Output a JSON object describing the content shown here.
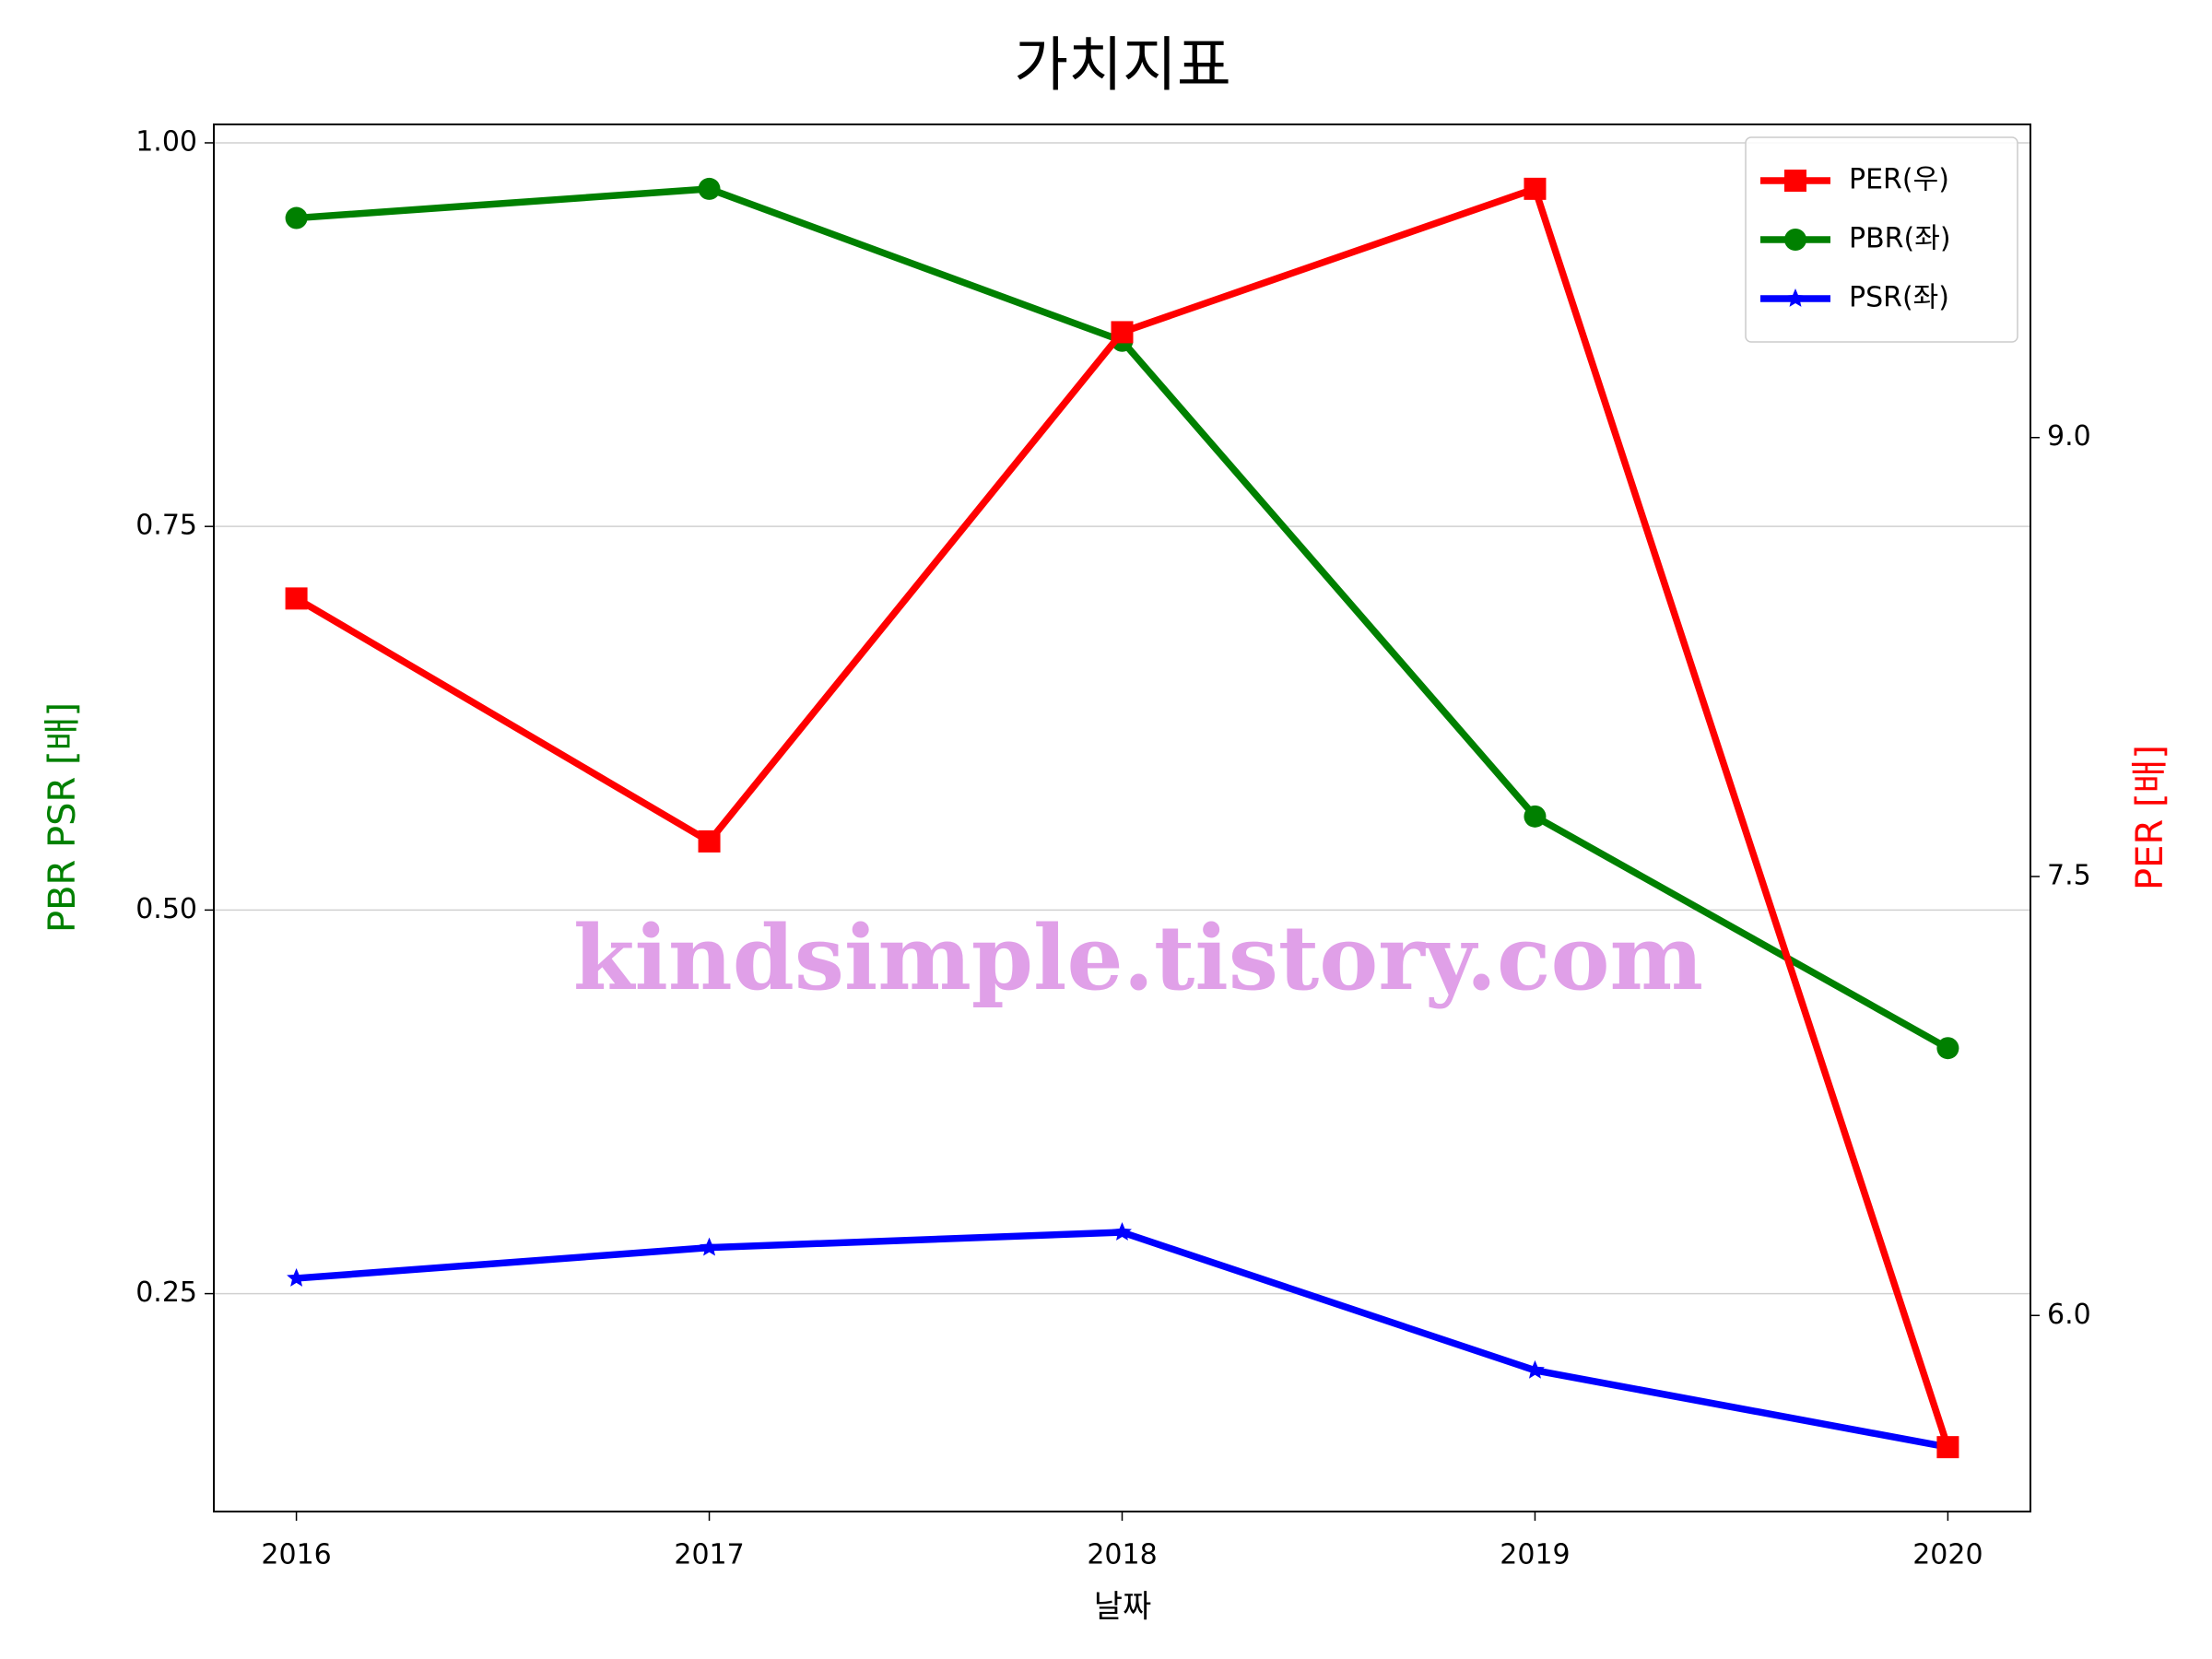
{
  "chart_data": {
    "type": "line",
    "title": "가치지표",
    "xlabel": "날짜",
    "ylabel": "PBR PSR [배]",
    "y2label": "PER [배]",
    "ylabel_color": "#008000",
    "y2label_color": "#ff0000",
    "x": [
      2016,
      2017,
      2018,
      2019,
      2020
    ],
    "xlim": [
      2015.8,
      2020.2
    ],
    "xticks": [
      2016,
      2017,
      2018,
      2019,
      2020
    ],
    "ylim": [
      0.108,
      1.012
    ],
    "yticks": [
      {
        "value": 0.25,
        "label": "0.25"
      },
      {
        "value": 0.5,
        "label": "0.50"
      },
      {
        "value": 0.75,
        "label": "0.75"
      },
      {
        "value": 1,
        "label": "1.00"
      }
    ],
    "y2lim": [
      5.33,
      10.07
    ],
    "y2ticks": [
      {
        "value": 6,
        "label": "6.0"
      },
      {
        "value": 7.5,
        "label": "7.5"
      },
      {
        "value": 9,
        "label": "9.0"
      }
    ],
    "grid": true,
    "legend": "upper right",
    "annotation": "kindsimple.tistory.com",
    "series": [
      {
        "name": "PER(우)",
        "color": "#ff0000",
        "marker": "square",
        "axis": "y2",
        "values": [
          8.45,
          7.62,
          9.36,
          9.85,
          5.55
        ]
      },
      {
        "name": "PBR(좌)",
        "color": "#008000",
        "marker": "circle",
        "values": [
          0.951,
          0.97,
          0.871,
          0.561,
          0.41
        ]
      },
      {
        "name": "PSR(좌)",
        "color": "#0000ff",
        "marker": "star",
        "values": [
          0.26,
          0.28,
          0.29,
          0.2,
          0.15
        ]
      }
    ]
  }
}
